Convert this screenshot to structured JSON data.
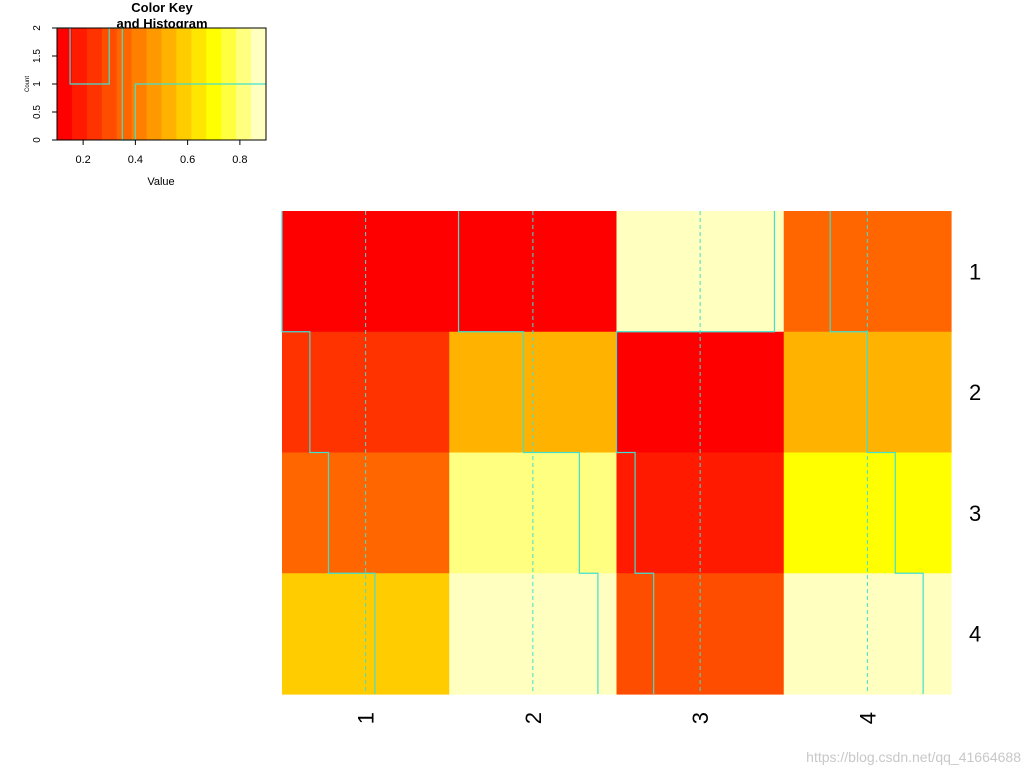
{
  "chart_data": [
    {
      "type": "histogram",
      "title_line1": "Color Key",
      "title_line2": "and Histogram",
      "xlabel": "Value",
      "ylabel": "Count",
      "xlim": [
        0.1,
        0.9
      ],
      "ylim": [
        0,
        2
      ],
      "xticks": [
        "0.2",
        "0.4",
        "0.6",
        "0.8"
      ],
      "yticks": [
        "0",
        "0.5",
        "1",
        "1.5",
        "2"
      ],
      "color_scale": [
        "#ff0000",
        "#ff1a00",
        "#ff3300",
        "#ff4d00",
        "#ff6600",
        "#ff8000",
        "#ff9900",
        "#ffb300",
        "#ffcc00",
        "#ffe600",
        "#ffff00",
        "#ffff40",
        "#ffff80",
        "#ffffbf"
      ],
      "hist_line_color": "#40e0d0",
      "counts": [
        2,
        1,
        1,
        1,
        2,
        0,
        1,
        1,
        1,
        1,
        1,
        1,
        1,
        1,
        1,
        1
      ]
    },
    {
      "type": "heatmap",
      "rows": [
        "1",
        "2",
        "3",
        "4"
      ],
      "columns": [
        "1",
        "2",
        "3",
        "4"
      ],
      "values": [
        [
          0.1,
          0.15,
          0.95,
          0.35
        ],
        [
          0.25,
          0.5,
          0.1,
          0.55
        ],
        [
          0.35,
          0.8,
          0.2,
          0.7
        ],
        [
          0.6,
          0.9,
          0.3,
          0.85
        ]
      ],
      "trace_color": "#40e0d0"
    }
  ],
  "watermark": "https://blog.csdn.net/qq_41664688"
}
